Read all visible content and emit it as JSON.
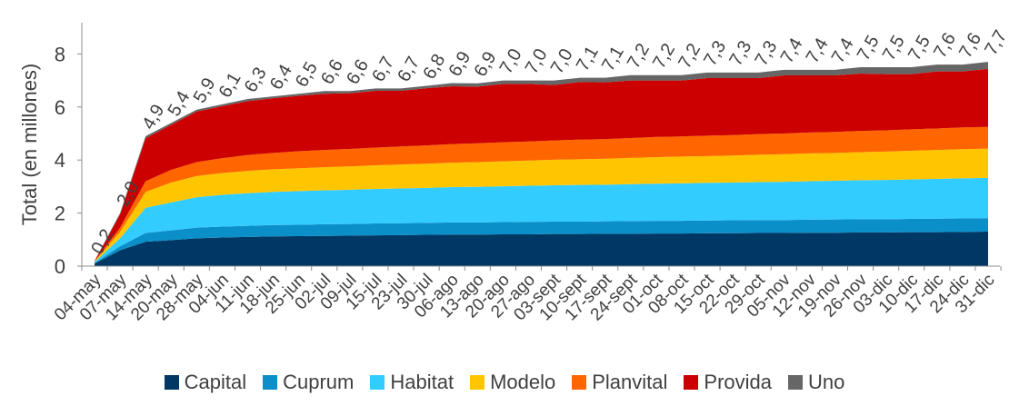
{
  "chart_data": {
    "type": "area",
    "stacked": true,
    "title": "",
    "xlabel": "",
    "ylabel": "Total (en millones)",
    "ylim": [
      0,
      9
    ],
    "yticks": [
      0,
      2,
      4,
      6,
      8
    ],
    "grid": false,
    "legend_position": "bottom",
    "categories": [
      "04-may",
      "07-may",
      "14-may",
      "20-may",
      "28-may",
      "04-jun",
      "11-jun",
      "18-jun",
      "25-jun",
      "02-jul",
      "09-jul",
      "15-jul",
      "23-jul",
      "30-jul",
      "06-ago",
      "13-ago",
      "20-ago",
      "27-ago",
      "03-sept",
      "10-sept",
      "17-sept",
      "24-sept",
      "01-oct",
      "08-oct",
      "15-oct",
      "22-oct",
      "29-oct",
      "05-nov",
      "12-nov",
      "19-nov",
      "26-nov",
      "03-dic",
      "10-dic",
      "17-dic",
      "24-dic",
      "31-dic"
    ],
    "total_labels": [
      "0,2",
      "2,0",
      "4,9",
      "5,4",
      "5,9",
      "6,1",
      "6,3",
      "6,4",
      "6,5",
      "6,6",
      "6,6",
      "6,7",
      "6,7",
      "6,8",
      "6,9",
      "6,9",
      "7,0",
      "7,0",
      "7,0",
      "7,1",
      "7,1",
      "7,2",
      "7,2",
      "7,2",
      "7,3",
      "7,3",
      "7,3",
      "7,4",
      "7,4",
      "7,4",
      "7,5",
      "7,5",
      "7,5",
      "7,6",
      "7,6",
      "7,7"
    ],
    "series": [
      {
        "name": "Capital",
        "color": "#003865",
        "values": [
          0.1,
          0.6,
          0.92,
          0.98,
          1.05,
          1.08,
          1.1,
          1.12,
          1.13,
          1.14,
          1.15,
          1.16,
          1.17,
          1.18,
          1.19,
          1.19,
          1.2,
          1.2,
          1.21,
          1.21,
          1.22,
          1.22,
          1.23,
          1.23,
          1.24,
          1.24,
          1.25,
          1.25,
          1.26,
          1.26,
          1.27,
          1.27,
          1.28,
          1.28,
          1.29,
          1.3
        ]
      },
      {
        "name": "Cuprum",
        "color": "#0B8FC8",
        "values": [
          0.02,
          0.15,
          0.33,
          0.37,
          0.4,
          0.41,
          0.42,
          0.43,
          0.43,
          0.44,
          0.44,
          0.45,
          0.45,
          0.45,
          0.46,
          0.46,
          0.46,
          0.47,
          0.47,
          0.47,
          0.47,
          0.48,
          0.48,
          0.48,
          0.48,
          0.49,
          0.49,
          0.49,
          0.49,
          0.5,
          0.5,
          0.5,
          0.5,
          0.51,
          0.51,
          0.51
        ]
      },
      {
        "name": "Habitat",
        "color": "#33CCFF",
        "values": [
          0.03,
          0.3,
          0.95,
          1.05,
          1.15,
          1.2,
          1.23,
          1.25,
          1.27,
          1.28,
          1.29,
          1.3,
          1.31,
          1.32,
          1.33,
          1.34,
          1.35,
          1.36,
          1.37,
          1.38,
          1.38,
          1.39,
          1.4,
          1.41,
          1.42,
          1.42,
          1.43,
          1.44,
          1.45,
          1.46,
          1.47,
          1.48,
          1.49,
          1.5,
          1.51,
          1.52
        ]
      },
      {
        "name": "Modelo",
        "color": "#FFC600",
        "values": [
          0.02,
          0.25,
          0.6,
          0.75,
          0.8,
          0.82,
          0.84,
          0.85,
          0.86,
          0.87,
          0.88,
          0.89,
          0.9,
          0.91,
          0.92,
          0.93,
          0.94,
          0.95,
          0.96,
          0.97,
          0.98,
          0.99,
          1.0,
          1.01,
          1.01,
          1.02,
          1.03,
          1.04,
          1.05,
          1.05,
          1.06,
          1.07,
          1.08,
          1.09,
          1.1,
          1.1
        ]
      },
      {
        "name": "Planvital",
        "color": "#FF6600",
        "values": [
          0.01,
          0.15,
          0.4,
          0.48,
          0.52,
          0.56,
          0.6,
          0.62,
          0.64,
          0.65,
          0.66,
          0.67,
          0.68,
          0.69,
          0.7,
          0.71,
          0.72,
          0.72,
          0.73,
          0.74,
          0.74,
          0.75,
          0.76,
          0.76,
          0.77,
          0.77,
          0.78,
          0.78,
          0.79,
          0.79,
          0.8,
          0.8,
          0.81,
          0.81,
          0.82,
          0.82
        ]
      },
      {
        "name": "Provida",
        "color": "#CC0000",
        "values": [
          0.01,
          0.5,
          1.62,
          1.7,
          1.91,
          1.96,
          2.03,
          2.06,
          2.09,
          2.12,
          2.1,
          2.14,
          2.1,
          2.16,
          2.18,
          2.14,
          2.2,
          2.17,
          2.09,
          2.17,
          2.14,
          2.17,
          2.13,
          2.11,
          2.17,
          2.15,
          2.11,
          2.19,
          2.15,
          2.13,
          2.16,
          2.12,
          2.08,
          2.15,
          2.11,
          2.19
        ]
      },
      {
        "name": "Uno",
        "color": "#666666",
        "values": [
          0.01,
          0.05,
          0.08,
          0.07,
          0.07,
          0.07,
          0.08,
          0.07,
          0.08,
          0.1,
          0.08,
          0.09,
          0.09,
          0.09,
          0.12,
          0.12,
          0.13,
          0.13,
          0.17,
          0.16,
          0.17,
          0.2,
          0.2,
          0.2,
          0.21,
          0.21,
          0.21,
          0.21,
          0.21,
          0.21,
          0.24,
          0.26,
          0.26,
          0.26,
          0.26,
          0.26
        ]
      }
    ]
  }
}
